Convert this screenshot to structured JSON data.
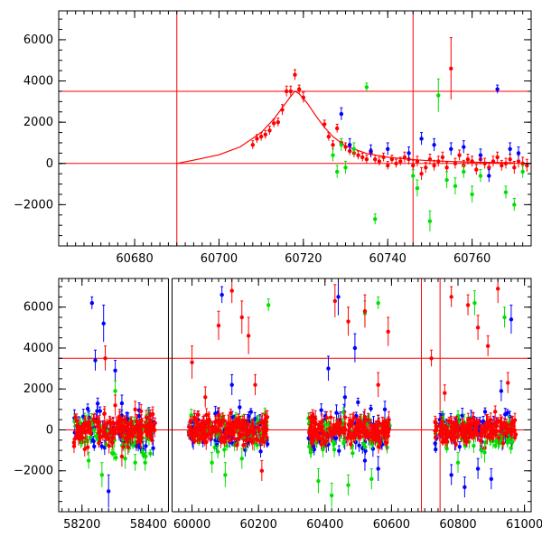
{
  "colors": {
    "red": "#ff0000",
    "green": "#00e000",
    "blue": "#0000ff",
    "axis": "#000000"
  },
  "chart_data": [
    {
      "type": "scatter",
      "title": "",
      "xlabel": "",
      "ylabel": "",
      "xlim": [
        60662,
        60774
      ],
      "ylim": [
        -4000,
        7400
      ],
      "xticks": [
        {
          "v": 60680,
          "label": "60680"
        },
        {
          "v": 60700,
          "label": "60700"
        },
        {
          "v": 60720,
          "label": "60720"
        },
        {
          "v": 60740,
          "label": "60740"
        },
        {
          "v": 60760,
          "label": "60760"
        }
      ],
      "yticks": [
        {
          "v": -2000,
          "label": "−2000"
        },
        {
          "v": 0,
          "label": "0"
        },
        {
          "v": 2000,
          "label": "2000"
        },
        {
          "v": 4000,
          "label": "4000"
        },
        {
          "v": 6000,
          "label": "6000"
        }
      ],
      "reference_lines": {
        "horizontal": [
          0,
          3500
        ],
        "vertical": [
          60690,
          60746
        ]
      },
      "model_curve": {
        "name": "",
        "x": [
          60690,
          60695,
          60700,
          60705,
          60710,
          60713,
          60715,
          60717,
          60718,
          60719,
          60721,
          60723,
          60725,
          60727,
          60730,
          60735,
          60740,
          60745,
          60750,
          60760,
          60770
        ],
        "y": [
          0,
          200,
          420,
          800,
          1500,
          2150,
          2700,
          3250,
          3500,
          3380,
          2900,
          2300,
          1750,
          1300,
          850,
          480,
          300,
          200,
          130,
          60,
          30
        ]
      },
      "series": [
        {
          "color": "red",
          "points": [
            [
              60708,
              900,
              200
            ],
            [
              60709,
              1200,
              200
            ],
            [
              60710,
              1300,
              200
            ],
            [
              60711,
              1400,
              200
            ],
            [
              60712,
              1600,
              200
            ],
            [
              60713,
              1950,
              200
            ],
            [
              60714,
              2000,
              200
            ],
            [
              60715,
              2600,
              250
            ],
            [
              60716,
              3500,
              250
            ],
            [
              60717,
              3500,
              250
            ],
            [
              60718,
              4300,
              250
            ],
            [
              60719,
              3600,
              200
            ],
            [
              60720,
              3200,
              250
            ],
            [
              60725,
              1900,
              200
            ],
            [
              60726,
              1300,
              200
            ],
            [
              60727,
              900,
              200
            ],
            [
              60728,
              1700,
              200
            ],
            [
              60729,
              1000,
              200
            ],
            [
              60730,
              800,
              200
            ],
            [
              60731,
              600,
              200
            ],
            [
              60732,
              500,
              200
            ],
            [
              60733,
              400,
              200
            ],
            [
              60734,
              300,
              200
            ],
            [
              60735,
              200,
              200
            ],
            [
              60736,
              500,
              200
            ],
            [
              60737,
              200,
              200
            ],
            [
              60738,
              100,
              200
            ],
            [
              60739,
              300,
              200
            ],
            [
              60740,
              -100,
              200
            ],
            [
              60741,
              200,
              200
            ],
            [
              60742,
              0,
              200
            ],
            [
              60743,
              100,
              200
            ],
            [
              60744,
              300,
              250
            ],
            [
              60745,
              200,
              250
            ],
            [
              60746,
              -100,
              250
            ],
            [
              60747,
              100,
              250
            ],
            [
              60748,
              -500,
              300
            ],
            [
              60749,
              -200,
              250
            ],
            [
              60750,
              200,
              250
            ],
            [
              60751,
              -100,
              250
            ],
            [
              60752,
              100,
              250
            ],
            [
              60753,
              300,
              250
            ],
            [
              60754,
              -200,
              250
            ],
            [
              60755,
              4600,
              1500
            ],
            [
              60756,
              0,
              250
            ],
            [
              60757,
              400,
              250
            ],
            [
              60758,
              -100,
              250
            ],
            [
              60759,
              200,
              250
            ],
            [
              60760,
              100,
              250
            ],
            [
              60761,
              -300,
              250
            ],
            [
              60762,
              200,
              250
            ],
            [
              60763,
              0,
              250
            ],
            [
              60764,
              -200,
              250
            ],
            [
              60765,
              100,
              250
            ],
            [
              60766,
              300,
              250
            ],
            [
              60767,
              -100,
              250
            ],
            [
              60768,
              0,
              250
            ],
            [
              60769,
              200,
              250
            ],
            [
              60770,
              -200,
              300
            ],
            [
              60771,
              100,
              300
            ],
            [
              60772,
              0,
              300
            ],
            [
              60773,
              -100,
              300
            ]
          ]
        },
        {
          "color": "green",
          "points": [
            [
              60727,
              400,
              300
            ],
            [
              60728,
              -400,
              300
            ],
            [
              60729,
              900,
              300
            ],
            [
              60730,
              -200,
              300
            ],
            [
              60732,
              700,
              300
            ],
            [
              60735,
              3700,
              200
            ],
            [
              60737,
              -2700,
              250
            ],
            [
              60746,
              -600,
              300
            ],
            [
              60747,
              -1200,
              400
            ],
            [
              60750,
              -2800,
              500
            ],
            [
              60752,
              3300,
              800
            ],
            [
              60754,
              -800,
              400
            ],
            [
              60756,
              -1100,
              400
            ],
            [
              60758,
              -400,
              300
            ],
            [
              60760,
              -1500,
              400
            ],
            [
              60762,
              -600,
              300
            ],
            [
              60768,
              -1400,
              300
            ],
            [
              60770,
              -2000,
              300
            ],
            [
              60772,
              -400,
              300
            ]
          ]
        },
        {
          "color": "blue",
          "points": [
            [
              60729,
              2400,
              300
            ],
            [
              60731,
              900,
              300
            ],
            [
              60736,
              600,
              300
            ],
            [
              60740,
              700,
              300
            ],
            [
              60745,
              500,
              300
            ],
            [
              60748,
              1200,
              300
            ],
            [
              60751,
              900,
              300
            ],
            [
              60755,
              700,
              300
            ],
            [
              60758,
              800,
              300
            ],
            [
              60762,
              400,
              300
            ],
            [
              60764,
              -600,
              300
            ],
            [
              60766,
              3600,
              200
            ],
            [
              60769,
              700,
              300
            ],
            [
              60771,
              500,
              300
            ]
          ]
        }
      ]
    },
    {
      "type": "scatter",
      "title": "",
      "xlabel": "",
      "ylabel": "",
      "xlim": [
        58130,
        61020
      ],
      "ylim": [
        -4000,
        7400
      ],
      "xticks": [
        {
          "v": 58200,
          "label": "58200"
        },
        {
          "v": 58400,
          "label": "58400"
        },
        {
          "v": 60000,
          "label": "60000"
        },
        {
          "v": 60200,
          "label": "60200"
        },
        {
          "v": 60400,
          "label": "60400"
        },
        {
          "v": 60600,
          "label": "60600"
        },
        {
          "v": 60800,
          "label": "60800"
        },
        {
          "v": 61000,
          "label": "61000"
        }
      ],
      "yticks": [
        {
          "v": -2000,
          "label": "−2000"
        },
        {
          "v": 0,
          "label": "0"
        },
        {
          "v": 2000,
          "label": "2000"
        },
        {
          "v": 4000,
          "label": "4000"
        },
        {
          "v": 6000,
          "label": "6000"
        }
      ],
      "axis_break": {
        "from": 58460,
        "to": 59940
      },
      "reference_lines": {
        "horizontal": [
          0,
          3500
        ],
        "vertical": [
          60690,
          60746
        ]
      },
      "observing_seasons": [
        {
          "from": 58175,
          "to": 58420,
          "spread": 900
        },
        {
          "from": 59990,
          "to": 60230,
          "spread": 800
        },
        {
          "from": 60350,
          "to": 60595,
          "spread": 800
        },
        {
          "from": 60730,
          "to": 60975,
          "spread": 700
        }
      ],
      "series": [
        {
          "color": "blue",
          "points": [
            [
              58230,
              6200,
              300
            ],
            [
              58240,
              3400,
              500
            ],
            [
              58265,
              5200,
              900
            ],
            [
              58280,
              -3000,
              800
            ],
            [
              58300,
              2900,
              500
            ],
            [
              58320,
              1300,
              400
            ],
            [
              60090,
              6600,
              400
            ],
            [
              60120,
              2200,
              500
            ],
            [
              60410,
              3000,
              600
            ],
            [
              60440,
              6500,
              900
            ],
            [
              60460,
              1600,
              500
            ],
            [
              60490,
              4000,
              700
            ],
            [
              60520,
              -1500,
              500
            ],
            [
              60560,
              -1900,
              600
            ],
            [
              60580,
              1000,
              400
            ],
            [
              60780,
              -2200,
              500
            ],
            [
              60820,
              -2800,
              500
            ],
            [
              60860,
              -1900,
              500
            ],
            [
              60900,
              -2400,
              500
            ],
            [
              60960,
              5400,
              700
            ],
            [
              60930,
              1900,
              500
            ]
          ]
        },
        {
          "color": "green",
          "points": [
            [
              58220,
              -1500,
              400
            ],
            [
              58260,
              -2200,
              600
            ],
            [
              58300,
              1900,
              500
            ],
            [
              58330,
              -1400,
              500
            ],
            [
              58360,
              -1600,
              400
            ],
            [
              58390,
              -1600,
              400
            ],
            [
              60060,
              -1600,
              500
            ],
            [
              60100,
              -2200,
              600
            ],
            [
              60150,
              -1400,
              500
            ],
            [
              60230,
              6100,
              300
            ],
            [
              60380,
              -2500,
              600
            ],
            [
              60420,
              -3200,
              600
            ],
            [
              60470,
              -2700,
              500
            ],
            [
              60520,
              5700,
              600
            ],
            [
              60540,
              -2400,
              500
            ],
            [
              60560,
              6200,
              300
            ],
            [
              60800,
              -1600,
              500
            ],
            [
              60850,
              6200,
              600
            ],
            [
              60880,
              -1100,
              500
            ],
            [
              60940,
              5500,
              500
            ]
          ]
        },
        {
          "color": "red",
          "points": [
            [
              58270,
              3500,
              600
            ],
            [
              58300,
              1200,
              500
            ],
            [
              58320,
              -1300,
              500
            ],
            [
              58360,
              1000,
              400
            ],
            [
              60000,
              3300,
              800
            ],
            [
              60040,
              1600,
              500
            ],
            [
              60080,
              5100,
              700
            ],
            [
              60120,
              6800,
              600
            ],
            [
              60150,
              5500,
              800
            ],
            [
              60170,
              4600,
              900
            ],
            [
              60190,
              2200,
              500
            ],
            [
              60210,
              -2000,
              500
            ],
            [
              60430,
              6300,
              800
            ],
            [
              60470,
              5300,
              700
            ],
            [
              60520,
              5800,
              800
            ],
            [
              60560,
              2200,
              600
            ],
            [
              60590,
              4800,
              700
            ],
            [
              60720,
              3500,
              400
            ],
            [
              60760,
              1800,
              400
            ],
            [
              60780,
              6500,
              500
            ],
            [
              60830,
              6100,
              500
            ],
            [
              60860,
              5000,
              600
            ],
            [
              60890,
              4100,
              500
            ],
            [
              60920,
              6900,
              700
            ],
            [
              60950,
              2300,
              500
            ]
          ]
        }
      ]
    }
  ]
}
